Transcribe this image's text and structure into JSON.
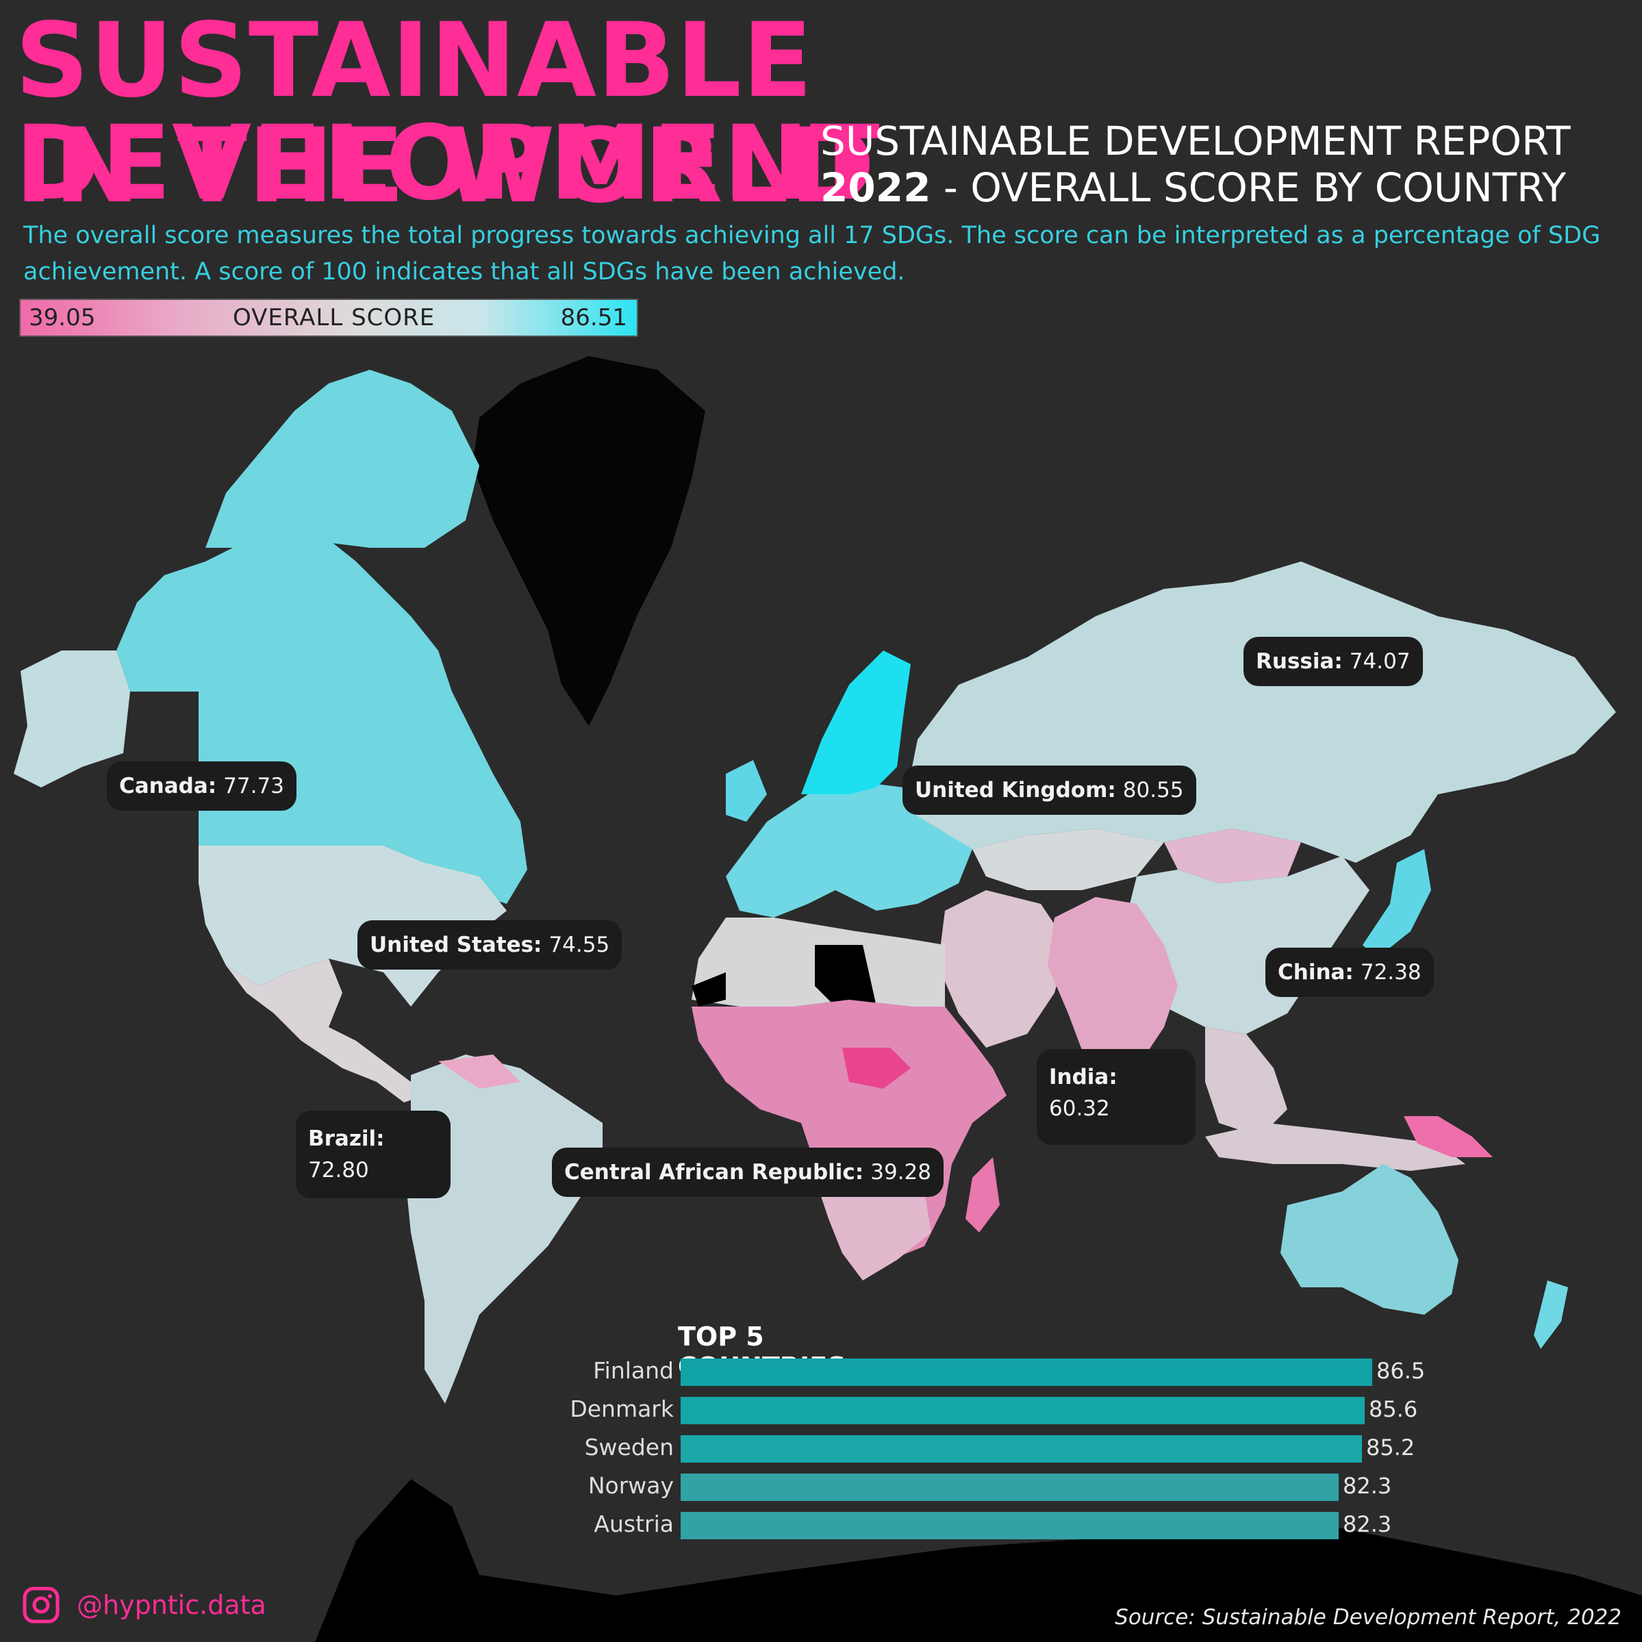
{
  "header": {
    "title_line1": "SUSTAINABLE DEVELOPMENT",
    "title_line2": "IN THE WORLD",
    "subtitle_line1": "SUSTAINABLE DEVELOPMENT REPORT",
    "subtitle_year": "2022",
    "subtitle_line2": " - OVERALL SCORE BY COUNTRY",
    "description": "The overall score measures the total progress towards achieving all 17 SDGs. The score can be interpreted as a percentage of SDG achievement. A score of 100 indicates that all SDGs have been achieved."
  },
  "legend": {
    "min": "39.05",
    "label": "OVERALL SCORE",
    "max": "86.51",
    "color_min": "#f06aa8",
    "color_max": "#2ee3f2"
  },
  "map": {
    "callouts": [
      {
        "name": "Canada:",
        "value": "77.73"
      },
      {
        "name": "United States:",
        "value": "74.55"
      },
      {
        "name": "Brazil:",
        "value": "72.80"
      },
      {
        "name": "Central African Republic:",
        "value": "39.28"
      },
      {
        "name": "United Kingdom:",
        "value": "80.55"
      },
      {
        "name": "Russia:",
        "value": "74.07"
      },
      {
        "name": "China:",
        "value": "72.38"
      },
      {
        "name": "India:",
        "value": "60.32"
      }
    ],
    "regions": [
      {
        "name": "canada",
        "score": 77.73
      },
      {
        "name": "united-states",
        "score": 74.55
      },
      {
        "name": "mexico-central-america",
        "score": 68
      },
      {
        "name": "south-america",
        "score": 72.8
      },
      {
        "name": "greenland",
        "score": null
      },
      {
        "name": "nordics",
        "score": 86
      },
      {
        "name": "europe",
        "score": 80.55
      },
      {
        "name": "russia",
        "score": 74.07
      },
      {
        "name": "north-africa",
        "score": 68
      },
      {
        "name": "sub-saharan-africa",
        "score": 50
      },
      {
        "name": "central-african-republic",
        "score": 39.28
      },
      {
        "name": "middle-east",
        "score": 64
      },
      {
        "name": "central-asia",
        "score": 70
      },
      {
        "name": "mongolia",
        "score": 63
      },
      {
        "name": "india-south-asia",
        "score": 60.32
      },
      {
        "name": "china",
        "score": 72.38
      },
      {
        "name": "japan-korea",
        "score": 79
      },
      {
        "name": "southeast-asia",
        "score": 66
      },
      {
        "name": "australia",
        "score": 75
      },
      {
        "name": "new-zealand",
        "score": 78
      },
      {
        "name": "antarctica",
        "score": null
      }
    ]
  },
  "chart_data": {
    "type": "bar",
    "title": "TOP 5 COUNTRIES",
    "categories": [
      "Finland",
      "Denmark",
      "Sweden",
      "Norway",
      "Austria"
    ],
    "values": [
      86.5,
      85.6,
      85.2,
      82.3,
      82.3
    ],
    "value_labels": [
      "86.5",
      "85.6",
      "85.2",
      "82.3",
      "82.3"
    ],
    "xlim": [
      0,
      86.5
    ],
    "orientation": "horizontal",
    "bar_colors": [
      "#11a3a6",
      "#15a6a8",
      "#1ca7a9",
      "#32a3a5",
      "#32a3a5"
    ]
  },
  "footer": {
    "handle": "@hypntic.data",
    "source": "Source: Sustainable Development Report, 2022",
    "instagram_icon": "instagram-icon"
  }
}
